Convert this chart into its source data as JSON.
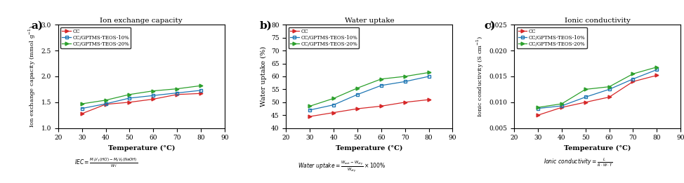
{
  "temperature": [
    30,
    40,
    50,
    60,
    70,
    80
  ],
  "iec_CC": [
    1.28,
    1.46,
    1.5,
    1.56,
    1.65,
    1.67
  ],
  "iec_10": [
    1.38,
    1.47,
    1.58,
    1.63,
    1.68,
    1.73
  ],
  "iec_20": [
    1.47,
    1.54,
    1.65,
    1.72,
    1.76,
    1.82
  ],
  "wu_CC": [
    44.5,
    46.0,
    47.5,
    48.5,
    50.0,
    51.0
  ],
  "wu_10": [
    47.0,
    49.0,
    53.0,
    56.5,
    58.0,
    60.0
  ],
  "wu_20": [
    48.5,
    51.5,
    55.5,
    59.0,
    60.0,
    61.5
  ],
  "ic_CC": [
    0.0075,
    0.009,
    0.01,
    0.011,
    0.014,
    0.0152
  ],
  "ic_10": [
    0.0088,
    0.0093,
    0.011,
    0.0125,
    0.0145,
    0.0163
  ],
  "ic_20": [
    0.009,
    0.0097,
    0.0125,
    0.013,
    0.0155,
    0.0168
  ],
  "color_CC": "#d62728",
  "color_10": "#1f77b4",
  "color_20": "#2ca02c",
  "label_CC": "CC",
  "label_10": "CC/GPTMS-TEOS-10%",
  "label_20": "CC/GPTMS-TEOS-20%",
  "title_a": "Ion exchange capacity",
  "title_b": "Water uptake",
  "title_c": "Ionic conductivity",
  "ylabel_a": "Ion exchange capacity (mmol g$^{-1}$)",
  "ylabel_b": "Water uptake (%)",
  "ylabel_c": "Ionic conductivity (S cm$^{-1}$)",
  "xlabel": "Temperature (°C)",
  "xlim": [
    20,
    90
  ],
  "xticks": [
    20,
    30,
    40,
    50,
    60,
    70,
    80,
    90
  ],
  "xtick_labels": [
    "20",
    "30",
    "40",
    "50",
    "60",
    "70",
    "80",
    "90"
  ],
  "ylim_a": [
    1.0,
    3.0
  ],
  "yticks_a": [
    1.0,
    1.5,
    2.0,
    2.5,
    3.0
  ],
  "ylim_b": [
    40,
    80
  ],
  "yticks_b": [
    40,
    45,
    50,
    55,
    60,
    65,
    70,
    75,
    80
  ],
  "ylim_c": [
    0.005,
    0.025
  ],
  "yticks_c": [
    0.005,
    0.01,
    0.015,
    0.02,
    0.025
  ]
}
